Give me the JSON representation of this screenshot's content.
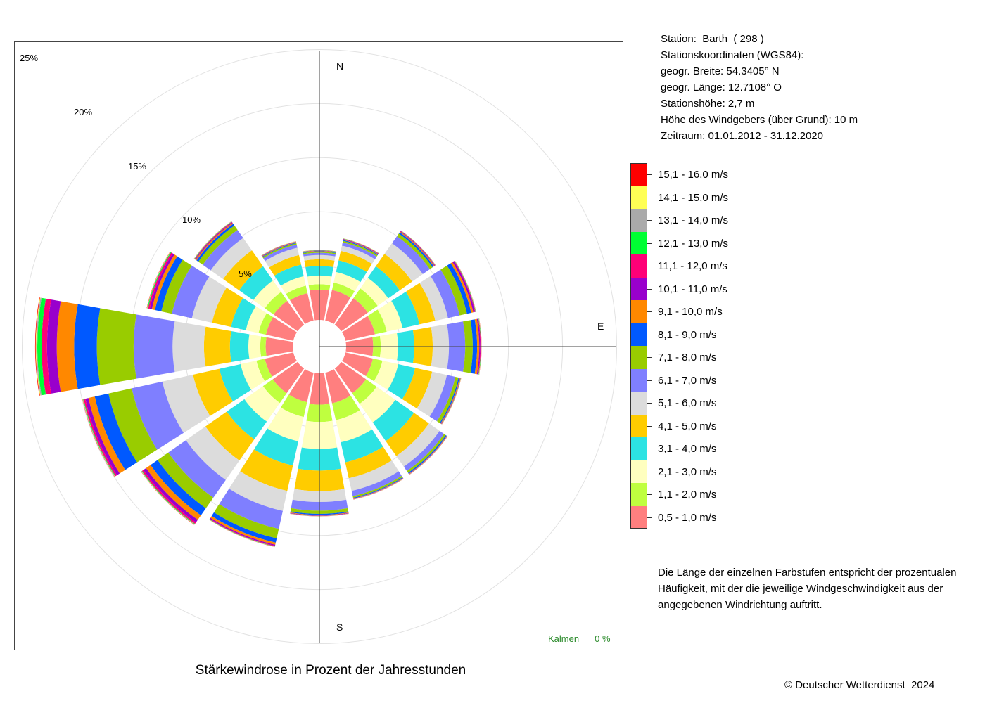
{
  "chart_data": {
    "type": "windrose",
    "title": "Stärkewindrose in Prozent der Jahresstunden",
    "directions": [
      "N",
      "NNE",
      "NE",
      "ENE",
      "E",
      "ESE",
      "SE",
      "SSE",
      "S",
      "SSW",
      "SW",
      "WSW",
      "W",
      "WNW",
      "NW",
      "NNW"
    ],
    "direction_labels": [
      "N",
      "E",
      "S"
    ],
    "radial_ticks": [
      5,
      10,
      15,
      20,
      25
    ],
    "radial_tick_labels": [
      "5%",
      "10%",
      "15%",
      "20%",
      "25%"
    ],
    "radial_max": 26,
    "speed_bins": [
      {
        "label": "0,5 - 1,0 m/s",
        "color": "#ff7f7f"
      },
      {
        "label": "1,1 - 2,0 m/s",
        "color": "#bfff3f"
      },
      {
        "label": "2,1 - 3,0 m/s",
        "color": "#ffffbf"
      },
      {
        "label": "3,1 - 4,0 m/s",
        "color": "#2ce3e3"
      },
      {
        "label": "4,1 - 5,0 m/s",
        "color": "#ffcc00"
      },
      {
        "label": "5,1 - 6,0 m/s",
        "color": "#dcdcdc"
      },
      {
        "label": "6,1 - 7,0 m/s",
        "color": "#7f7fff"
      },
      {
        "label": "7,1 - 8,0 m/s",
        "color": "#99cc00"
      },
      {
        "label": "8,1 - 9,0 m/s",
        "color": "#0059ff"
      },
      {
        "label": "9,1 - 10,0 m/s",
        "color": "#ff8800"
      },
      {
        "label": "10,1 - 11,0 m/s",
        "color": "#9900cc"
      },
      {
        "label": "11,1 - 12,0 m/s",
        "color": "#ff0077"
      },
      {
        "label": "12,1 - 13,0 m/s",
        "color": "#00ff33"
      },
      {
        "label": "13,1 - 14,0 m/s",
        "color": "#aaaaaa"
      },
      {
        "label": "14,1 - 15,0 m/s",
        "color": "#ffff55"
      },
      {
        "label": "15,1 - 16,0 m/s",
        "color": "#ff0000"
      }
    ],
    "cumulative_percent": [
      [
        2.8,
        3.3,
        4.1,
        5.0,
        5.6,
        6.0,
        6.2,
        6.3,
        6.35,
        6.38,
        6.4,
        6.42,
        6.44,
        6.45,
        6.46,
        6.47
      ],
      [
        2.9,
        3.6,
        4.6,
        5.7,
        6.6,
        7.1,
        7.4,
        7.55,
        7.62,
        7.66,
        7.7,
        7.73,
        7.75,
        7.76,
        7.77,
        7.78
      ],
      [
        3.0,
        4.1,
        5.3,
        6.6,
        8.0,
        9.2,
        10.0,
        10.3,
        10.45,
        10.52,
        10.57,
        10.6,
        10.62,
        10.63,
        10.64,
        10.65
      ],
      [
        2.8,
        3.9,
        5.4,
        7.0,
        8.5,
        9.7,
        10.8,
        11.5,
        11.9,
        12.1,
        12.25,
        12.3,
        12.33,
        12.35,
        12.36,
        12.37
      ],
      [
        2.5,
        3.2,
        4.8,
        6.3,
        8.0,
        9.5,
        11.0,
        11.7,
        12.1,
        12.3,
        12.4,
        12.45,
        12.48,
        12.5,
        12.51,
        12.52
      ],
      [
        2.6,
        3.5,
        5.0,
        6.6,
        8.2,
        9.6,
        10.4,
        10.7,
        10.8,
        10.85,
        10.88,
        10.9,
        10.92,
        10.93,
        10.94,
        10.95
      ],
      [
        2.8,
        4.0,
        6.1,
        8.2,
        9.9,
        11.1,
        11.6,
        11.8,
        11.9,
        11.93,
        11.95,
        11.97,
        11.98,
        11.99,
        12.0,
        12.01
      ],
      [
        2.9,
        4.5,
        6.6,
        8.5,
        10.0,
        11.2,
        11.7,
        11.85,
        11.92,
        11.95,
        11.97,
        11.99,
        12.0,
        12.01,
        12.02,
        12.03
      ],
      [
        2.9,
        4.5,
        7.0,
        9.0,
        10.9,
        11.9,
        12.7,
        13.0,
        13.1,
        13.15,
        13.18,
        13.2,
        13.21,
        13.22,
        13.23,
        13.24
      ],
      [
        2.8,
        4.2,
        6.5,
        8.8,
        11.2,
        13.1,
        14.8,
        15.7,
        16.1,
        16.3,
        16.4,
        16.45,
        16.48,
        16.5,
        16.51,
        16.52
      ],
      [
        2.8,
        3.9,
        6.0,
        8.0,
        10.4,
        12.6,
        14.6,
        15.8,
        16.6,
        17.1,
        17.4,
        17.55,
        17.6,
        17.63,
        17.65,
        17.67
      ],
      [
        2.7,
        3.5,
        5.0,
        7.0,
        9.5,
        12.4,
        15.3,
        17.5,
        18.8,
        19.4,
        19.7,
        19.85,
        19.9,
        19.93,
        19.95,
        19.97
      ],
      [
        2.5,
        3.0,
        4.1,
        5.8,
        8.2,
        11.1,
        14.7,
        18.1,
        20.2,
        21.8,
        22.7,
        23.2,
        23.6,
        23.7,
        23.75,
        23.8
      ],
      [
        2.6,
        3.3,
        4.5,
        5.9,
        7.7,
        9.6,
        11.5,
        12.5,
        13.1,
        13.4,
        13.6,
        13.75,
        13.82,
        13.85,
        13.87,
        13.89
      ],
      [
        2.7,
        3.7,
        5.0,
        6.6,
        8.4,
        9.8,
        10.7,
        11.2,
        11.4,
        11.5,
        11.57,
        11.62,
        11.65,
        11.67,
        11.68,
        11.69
      ],
      [
        2.6,
        3.3,
        4.2,
        5.3,
        6.2,
        6.9,
        7.2,
        7.32,
        7.38,
        7.42,
        7.45,
        7.47,
        7.49,
        7.5,
        7.51,
        7.52
      ]
    ]
  },
  "calm_label": "Kalmen  =  0 %",
  "station": [
    "Station:  Barth  ( 298 )",
    "Stationskoordinaten (WGS84):",
    "geogr. Breite: 54.3405° N",
    "geogr. Länge: 12.7108° O",
    "Stationshöhe: 2,7 m",
    "Höhe des Windgebers (über Grund): 10 m",
    "Zeitraum: 01.01.2012 - 31.12.2020"
  ],
  "note": "Die Länge der einzelnen Farbstufen entspricht der prozentualen Häufigkeit, mit der die jeweilige Windgeschwindigkeit aus der angegebenen Windrichtung auftritt.",
  "copyright": "© Deutscher Wetterdienst  2024"
}
